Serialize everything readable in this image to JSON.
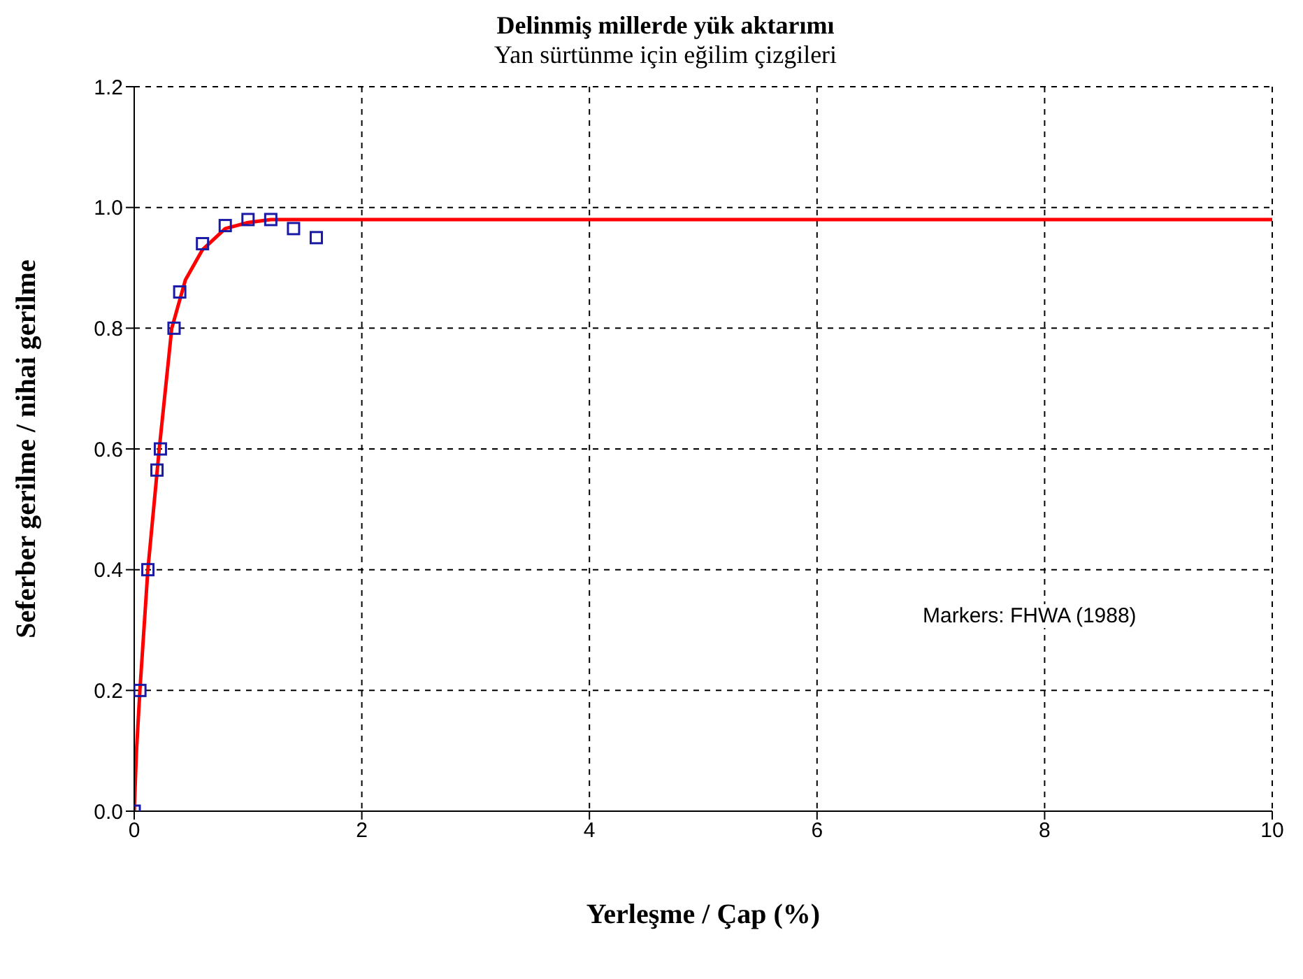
{
  "chart_data": {
    "type": "line",
    "title": "Delinmiş millerde yük aktarımı",
    "subtitle": "Yan sürtünme için eğilim çizgileri",
    "xlabel": "Yerleşme / Çap (%)",
    "ylabel": "Seferber gerilme / nihai gerilme",
    "xlim": [
      0,
      10
    ],
    "xticks": [
      0,
      2,
      4,
      6,
      8,
      10
    ],
    "ylim": [
      0,
      1.2
    ],
    "yticks": [
      {
        "value": 0,
        "label": "0.0"
      },
      {
        "value": 0.2,
        "label": "0.2"
      },
      {
        "value": 0.4,
        "label": "0.4"
      },
      {
        "value": 0.6,
        "label": "0.6"
      },
      {
        "value": 0.8,
        "label": "0.8"
      },
      {
        "value": 1,
        "label": "1.0"
      },
      {
        "value": 1.2,
        "label": "1.2"
      }
    ],
    "grid": true,
    "legend": false,
    "annotations": [
      "Markers: FHWA (1988)"
    ],
    "series": [
      {
        "type": "scatter",
        "color": "#1a1aa6",
        "marker": "square",
        "x": [
          0,
          0.05,
          0.12,
          0.2,
          0.23,
          0.35,
          0.4,
          0.6,
          0.8,
          1.0,
          1.2,
          1.4,
          1.6
        ],
        "values": [
          0,
          0.2,
          0.4,
          0.565,
          0.6,
          0.8,
          0.86,
          0.94,
          0.97,
          0.98,
          0.98,
          0.965,
          0.95
        ]
      },
      {
        "type": "line",
        "color": "#ff0000",
        "marker": "none",
        "line_style": "solid",
        "x": [
          0,
          0.02,
          0.05,
          0.12,
          0.22,
          0.33,
          0.45,
          0.6,
          0.8,
          1.0,
          1.2,
          10
        ],
        "values": [
          0,
          0.1,
          0.2,
          0.4,
          0.6,
          0.8,
          0.88,
          0.93,
          0.965,
          0.975,
          0.98,
          0.98
        ]
      }
    ]
  }
}
